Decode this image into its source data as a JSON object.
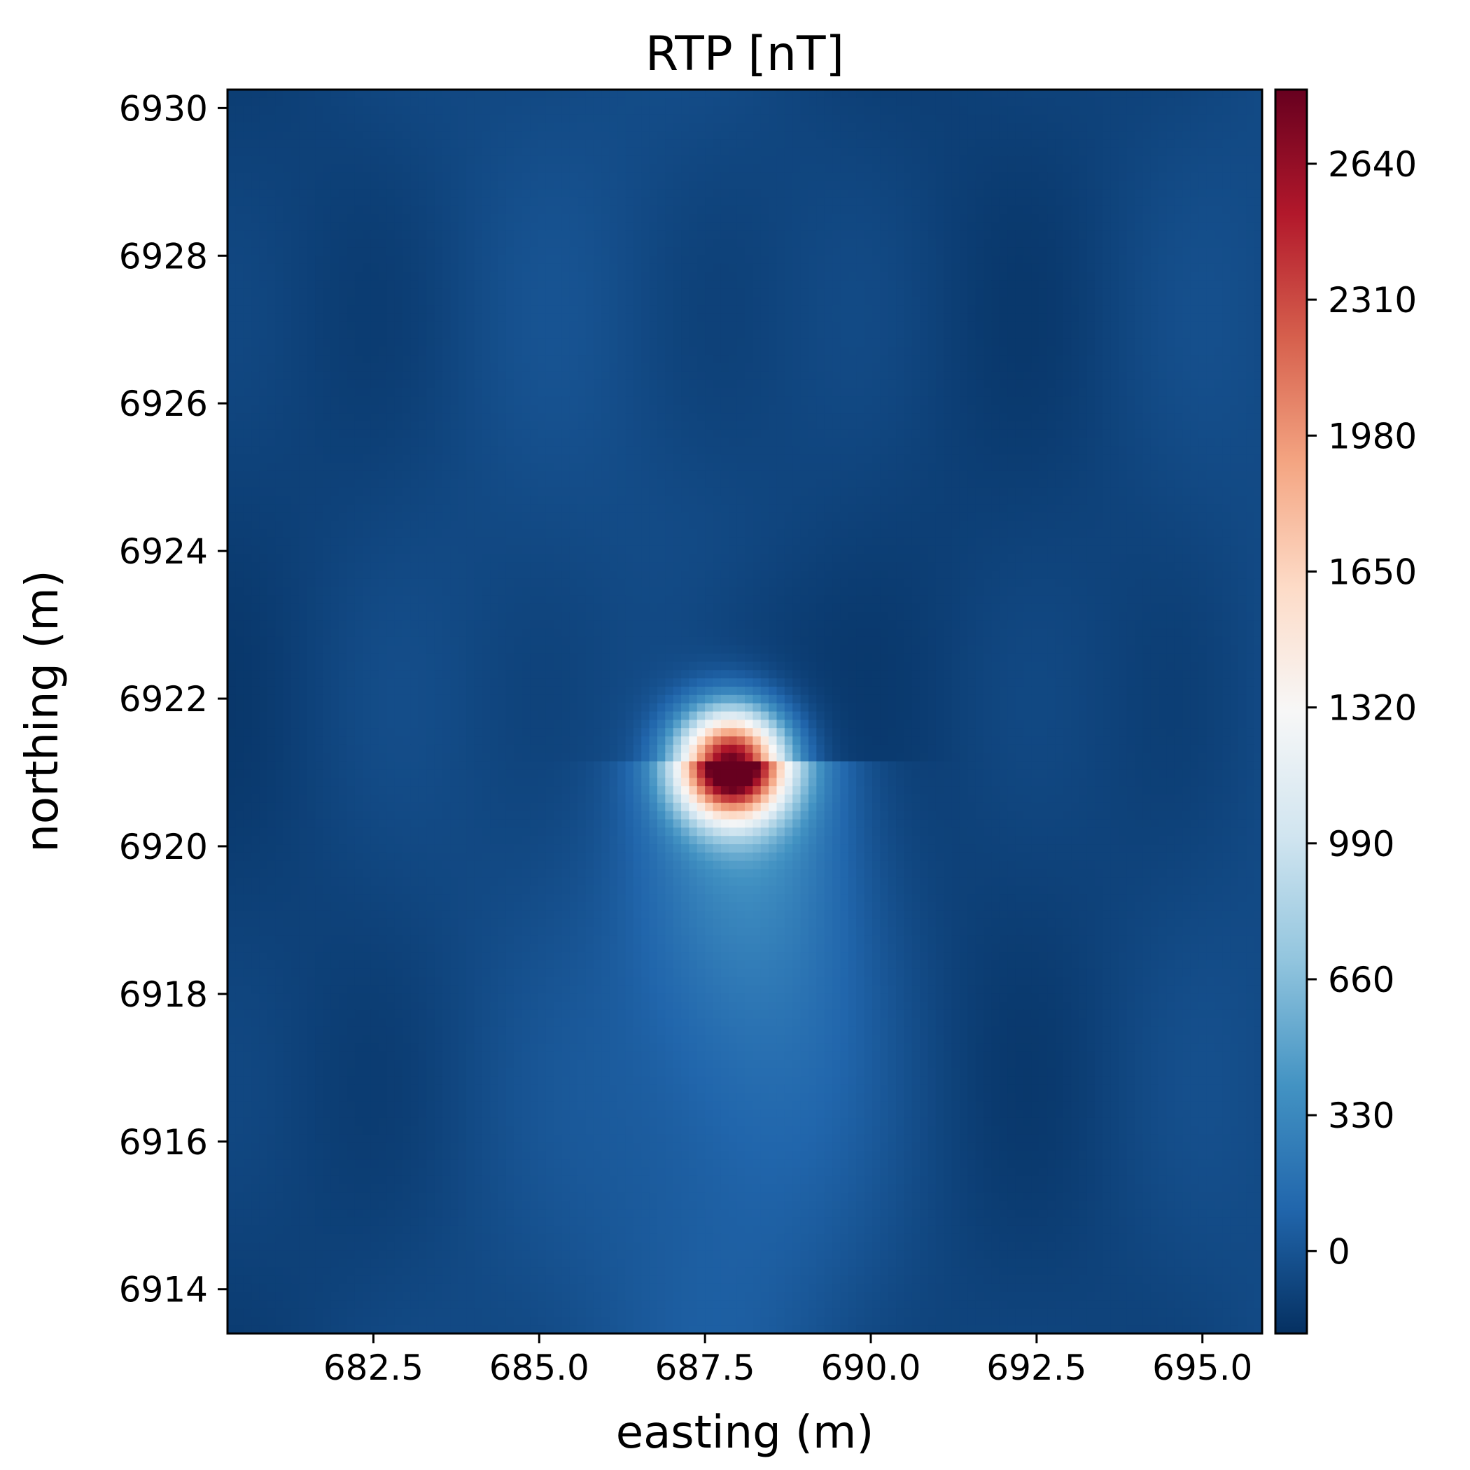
{
  "chart_data": {
    "type": "heatmap",
    "title": "RTP [nT]",
    "xlabel": "easting (m)",
    "ylabel": "northing (m)",
    "xlim": [
      680.3,
      695.9
    ],
    "ylim": [
      6913.4,
      6930.25
    ],
    "x_ticks": [
      {
        "value": 682.5,
        "label": "682.5"
      },
      {
        "value": 685.0,
        "label": "685.0"
      },
      {
        "value": 687.5,
        "label": "687.5"
      },
      {
        "value": 690.0,
        "label": "690.0"
      },
      {
        "value": 692.5,
        "label": "692.5"
      },
      {
        "value": 695.0,
        "label": "695.0"
      }
    ],
    "y_ticks": [
      {
        "value": 6914,
        "label": "6914"
      },
      {
        "value": 6916,
        "label": "6916"
      },
      {
        "value": 6918,
        "label": "6918"
      },
      {
        "value": 6920,
        "label": "6920"
      },
      {
        "value": 6922,
        "label": "6922"
      },
      {
        "value": 6924,
        "label": "6924"
      },
      {
        "value": 6926,
        "label": "6926"
      },
      {
        "value": 6928,
        "label": "6928"
      },
      {
        "value": 6930,
        "label": "6930"
      }
    ],
    "colorbar": {
      "cmap": "RdBu_r",
      "range": [
        -200,
        2820
      ],
      "ticks": [
        {
          "value": 0,
          "label": "0"
        },
        {
          "value": 330,
          "label": "330"
        },
        {
          "value": 660,
          "label": "660"
        },
        {
          "value": 990,
          "label": "990"
        },
        {
          "value": 1320,
          "label": "1320"
        },
        {
          "value": 1650,
          "label": "1650"
        },
        {
          "value": 1980,
          "label": "1980"
        },
        {
          "value": 2310,
          "label": "2310"
        },
        {
          "value": 2640,
          "label": "2640"
        }
      ],
      "colors": [
        "#053061",
        "#2166ac",
        "#4393c3",
        "#92c5de",
        "#d1e5f0",
        "#f7f7f7",
        "#fddbc7",
        "#f4a582",
        "#d6604d",
        "#b2182b",
        "#67001f"
      ]
    },
    "anomaly": {
      "peak_easting": 687.9,
      "peak_northing": 6921.1,
      "peak_value": 2800,
      "background_value": -80
    },
    "grid": false
  }
}
